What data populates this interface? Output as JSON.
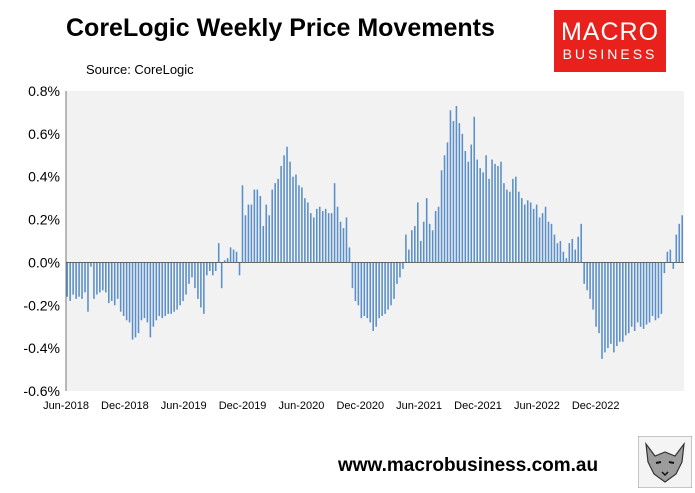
{
  "header": {
    "title": "CoreLogic Weekly Price Movements",
    "source": "Source: CoreLogic"
  },
  "logo": {
    "line1": "MACRO",
    "line2": "BUSINESS",
    "color": "#e8211d"
  },
  "footer": {
    "url": "www.macrobusiness.com.au"
  },
  "chart_data": {
    "type": "bar",
    "title": "CoreLogic Weekly Price Movements",
    "subtitle": "Source: CoreLogic",
    "xlabel": "",
    "ylabel": "",
    "ylim": [
      -0.6,
      0.8
    ],
    "yticks": [
      "-0.6%",
      "-0.4%",
      "-0.2%",
      "0.0%",
      "0.2%",
      "0.4%",
      "0.6%",
      "0.8%"
    ],
    "xticks": [
      "Jun-2018",
      "Dec-2018",
      "Jun-2019",
      "Dec-2019",
      "Jun-2020",
      "Dec-2020",
      "Jun-2021",
      "Dec-2021",
      "Jun-2022",
      "Dec-2022"
    ],
    "grid": false,
    "legend": "none",
    "bar_color": "#5b8fc9",
    "series": [
      {
        "values": [
          -0.16,
          -0.18,
          -0.15,
          -0.17,
          -0.16,
          -0.17,
          -0.14,
          -0.23,
          -0.02,
          -0.17,
          -0.15,
          -0.14,
          -0.13,
          -0.14,
          -0.19,
          -0.18,
          -0.2,
          -0.17,
          -0.23,
          -0.25,
          -0.27,
          -0.28,
          -0.36,
          -0.35,
          -0.33,
          -0.27,
          -0.26,
          -0.28,
          -0.35,
          -0.3,
          -0.27,
          -0.25,
          -0.26,
          -0.25,
          -0.24,
          -0.24,
          -0.23,
          -0.22,
          -0.2,
          -0.18,
          -0.15,
          -0.1,
          -0.07,
          -0.12,
          -0.17,
          -0.21,
          -0.24,
          -0.06,
          -0.04,
          -0.06,
          -0.04,
          0.09,
          -0.12,
          0.01,
          0.02,
          0.07,
          0.06,
          0.05,
          -0.06,
          0.36,
          0.22,
          0.27,
          0.27,
          0.34,
          0.34,
          0.31,
          0.17,
          0.27,
          0.22,
          0.34,
          0.37,
          0.39,
          0.45,
          0.5,
          0.54,
          0.47,
          0.4,
          0.41,
          0.36,
          0.35,
          0.3,
          0.28,
          0.23,
          0.21,
          0.25,
          0.26,
          0.24,
          0.25,
          0.23,
          0.23,
          0.37,
          0.26,
          0.19,
          0.16,
          0.21,
          0.07,
          -0.12,
          -0.18,
          -0.2,
          -0.26,
          -0.25,
          -0.26,
          -0.28,
          -0.32,
          -0.3,
          -0.26,
          -0.25,
          -0.24,
          -0.22,
          -0.2,
          -0.17,
          -0.1,
          -0.07,
          -0.03,
          0.13,
          0.06,
          0.15,
          0.17,
          0.28,
          0.1,
          0.19,
          0.3,
          0.18,
          0.15,
          0.24,
          0.26,
          0.43,
          0.5,
          0.56,
          0.71,
          0.66,
          0.73,
          0.65,
          0.6,
          0.52,
          0.47,
          0.55,
          0.68,
          0.48,
          0.44,
          0.42,
          0.5,
          0.39,
          0.48,
          0.46,
          0.45,
          0.47,
          0.37,
          0.34,
          0.33,
          0.39,
          0.4,
          0.33,
          0.3,
          0.27,
          0.29,
          0.28,
          0.25,
          0.27,
          0.21,
          0.23,
          0.26,
          0.19,
          0.18,
          0.13,
          0.09,
          0.1,
          0.05,
          0.02,
          0.09,
          0.11,
          0.06,
          0.12,
          0.18,
          -0.1,
          -0.13,
          -0.17,
          -0.22,
          -0.3,
          -0.33,
          -0.45,
          -0.42,
          -0.4,
          -0.38,
          -0.42,
          -0.39,
          -0.37,
          -0.37,
          -0.34,
          -0.33,
          -0.3,
          -0.32,
          -0.28,
          -0.3,
          -0.31,
          -0.29,
          -0.28,
          -0.25,
          -0.27,
          -0.26,
          -0.24,
          -0.05,
          0.05,
          0.06,
          -0.03,
          0.13,
          0.18,
          0.22
        ]
      }
    ]
  }
}
